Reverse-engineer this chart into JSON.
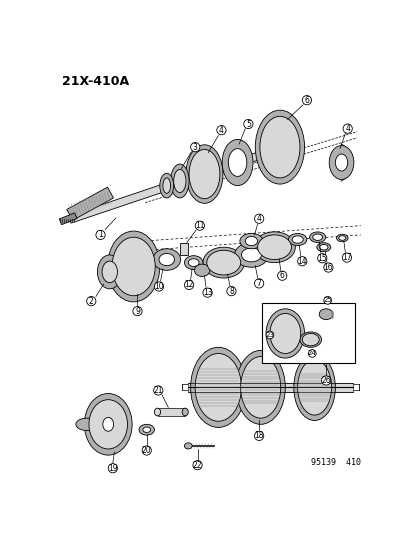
{
  "title": "21X-410A",
  "footer": "95139  410",
  "bg_color": "#ffffff",
  "lc": "#000000",
  "lw": 0.6,
  "title_fs": 9,
  "label_fs": 5.5,
  "footer_fs": 6
}
